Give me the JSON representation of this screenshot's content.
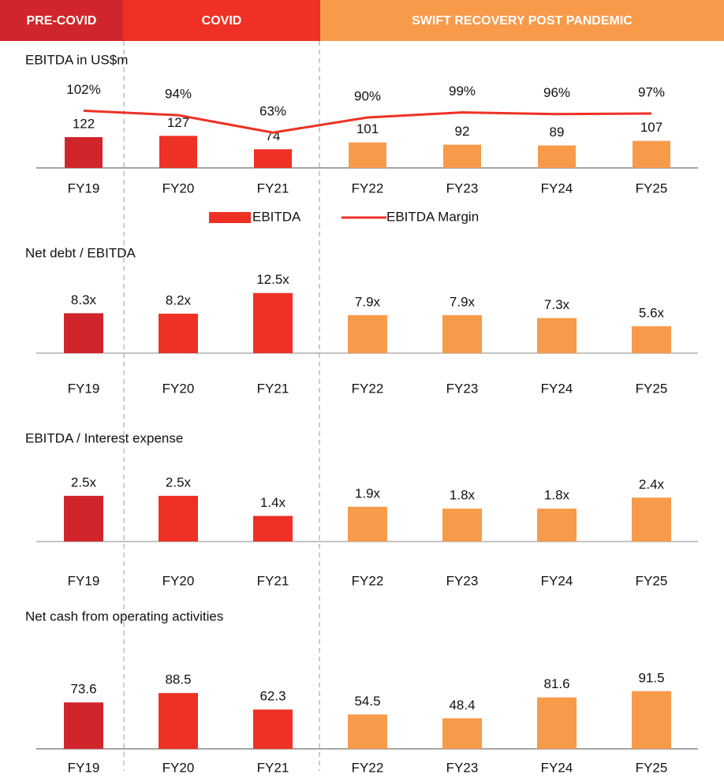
{
  "header": {
    "periods": [
      "PRE-COVID",
      "COVID",
      "SWIFT RECOVERY POST PANDEMIC"
    ]
  },
  "chart_data": [
    {
      "type": "combo",
      "title": "EBITDA in US$m",
      "categories": [
        "FY19",
        "FY20",
        "FY21",
        "FY22",
        "FY23",
        "FY24",
        "FY25"
      ],
      "ylim": [
        0,
        400
      ],
      "y2lim": [
        0,
        180
      ],
      "series": [
        {
          "name": "EBITDA",
          "type": "bar",
          "color": "#ee3124",
          "colors": [
            "#d0262b",
            "#ee3124",
            "#ee3124",
            "#f79a4a",
            "#f79a4a",
            "#f79a4a",
            "#f79a4a"
          ],
          "values": [
            122,
            127,
            74,
            101,
            92,
            89,
            107
          ]
        },
        {
          "name": "EBITDA Margin",
          "type": "line",
          "axis": "y2",
          "color": "#ee3124",
          "values": [
            102,
            94,
            63,
            90,
            99,
            96,
            97
          ],
          "value_labels": [
            "102%",
            "94%",
            "63%",
            "90%",
            "99%",
            "96%",
            "97%"
          ]
        }
      ]
    },
    {
      "type": "bar",
      "title": "Net debt / EBITDA",
      "categories": [
        "FY19",
        "FY20",
        "FY21",
        "FY22",
        "FY23",
        "FY24",
        "FY25"
      ],
      "ylim": [
        0,
        20
      ],
      "colors": [
        "#d0262b",
        "#ee3124",
        "#ee3124",
        "#f79a4a",
        "#f79a4a",
        "#f79a4a",
        "#f79a4a"
      ],
      "values": [
        8.3,
        8.2,
        12.5,
        7.9,
        7.9,
        7.3,
        5.6
      ],
      "value_labels": [
        "8.3x",
        "8.2x",
        "12.5x",
        "7.9x",
        "7.9x",
        "7.3x",
        "5.6x"
      ]
    },
    {
      "type": "bar",
      "title": "EBITDA / Interest expense",
      "categories": [
        "FY19",
        "FY20",
        "FY21",
        "FY22",
        "FY23",
        "FY24",
        "FY25"
      ],
      "ylim": [
        0,
        5
      ],
      "colors": [
        "#d0262b",
        "#ee3124",
        "#ee3124",
        "#f79a4a",
        "#f79a4a",
        "#f79a4a",
        "#f79a4a"
      ],
      "values": [
        2.5,
        2.5,
        1.4,
        1.9,
        1.8,
        1.8,
        2.4
      ],
      "value_labels": [
        "2.5x",
        "2.5x",
        "1.4x",
        "1.9x",
        "1.8x",
        "1.8x",
        "2.4x"
      ]
    },
    {
      "type": "bar",
      "title": "Net cash from operating activities",
      "categories": [
        "FY19",
        "FY20",
        "FY21",
        "FY22",
        "FY23",
        "FY24",
        "FY25"
      ],
      "ylim": [
        0,
        150
      ],
      "colors": [
        "#d0262b",
        "#ee3124",
        "#ee3124",
        "#f79a4a",
        "#f79a4a",
        "#f79a4a",
        "#f79a4a"
      ],
      "values": [
        73.6,
        88.5,
        62.3,
        54.5,
        48.4,
        81.6,
        91.5
      ]
    }
  ]
}
